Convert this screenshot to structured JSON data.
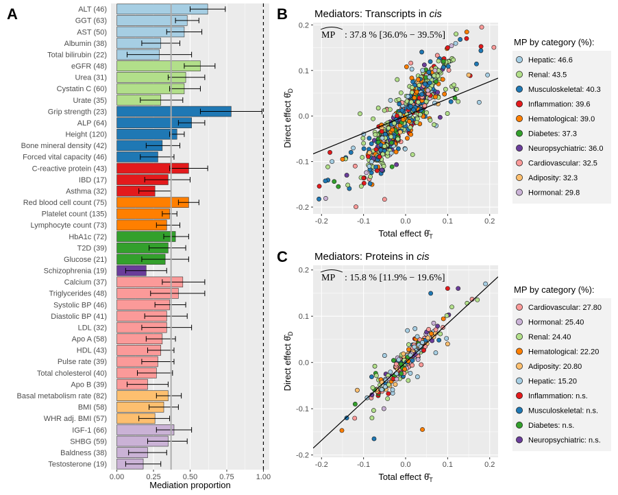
{
  "colors": {
    "Hepatic": "#a6cee3",
    "Renal": "#b2df8a",
    "Musculoskeletal": "#1f78b4",
    "Inflammation": "#e31a1c",
    "Hematological": "#ff7f00",
    "Diabetes": "#33a02c",
    "Neuropsychiatric": "#6a3d9a",
    "Cardiovascular": "#fb9a99",
    "Adiposity": "#fdbf6f",
    "Hormonal": "#cab2d6",
    "panel_bg": "#ebebeb",
    "grid": "#ffffff",
    "text_gray": "#888888"
  },
  "chart_data": [
    {
      "panel": "A",
      "type": "bar",
      "orientation": "horizontal",
      "xlabel": "Mediation proportion",
      "xlim": [
        -0.04,
        1.04
      ],
      "xticks": [
        "0.00",
        "0.25",
        "0.50",
        "0.75",
        "1.00"
      ],
      "reference_lines": {
        "solid_gray": 0.37,
        "dashed": 1.0
      },
      "bars": [
        {
          "label": "ALT (46)",
          "value": 0.62,
          "low": 0.5,
          "high": 0.74,
          "category": "Hepatic"
        },
        {
          "label": "GGT (63)",
          "value": 0.48,
          "low": 0.4,
          "high": 0.56,
          "category": "Hepatic"
        },
        {
          "label": "AST (50)",
          "value": 0.46,
          "low": 0.34,
          "high": 0.58,
          "category": "Hepatic"
        },
        {
          "label": "Albumin (38)",
          "value": 0.3,
          "low": 0.17,
          "high": 0.43,
          "category": "Hepatic"
        },
        {
          "label": "Total bilirubin (22)",
          "value": 0.29,
          "low": 0.07,
          "high": 0.51,
          "category": "Hepatic"
        },
        {
          "label": "eGFR (48)",
          "value": 0.57,
          "low": 0.46,
          "high": 0.67,
          "category": "Renal"
        },
        {
          "label": "Urea (31)",
          "value": 0.47,
          "low": 0.35,
          "high": 0.6,
          "category": "Renal"
        },
        {
          "label": "Cystatin C (60)",
          "value": 0.46,
          "low": 0.36,
          "high": 0.57,
          "category": "Renal"
        },
        {
          "label": "Urate (35)",
          "value": 0.3,
          "low": 0.16,
          "high": 0.45,
          "category": "Renal"
        },
        {
          "label": "Grip strength (23)",
          "value": 0.78,
          "low": 0.57,
          "high": 0.99,
          "category": "Musculoskeletal"
        },
        {
          "label": "ALP (64)",
          "value": 0.51,
          "low": 0.42,
          "high": 0.6,
          "category": "Musculoskeletal"
        },
        {
          "label": "Height (120)",
          "value": 0.41,
          "low": 0.36,
          "high": 0.46,
          "category": "Musculoskeletal"
        },
        {
          "label": "Bone mineral density (42)",
          "value": 0.31,
          "low": 0.2,
          "high": 0.43,
          "category": "Musculoskeletal"
        },
        {
          "label": "Forced vital capacity (46)",
          "value": 0.28,
          "low": 0.16,
          "high": 0.39,
          "category": "Musculoskeletal"
        },
        {
          "label": "C-reactive protein (43)",
          "value": 0.49,
          "low": 0.36,
          "high": 0.62,
          "category": "Inflammation"
        },
        {
          "label": "IBD (17)",
          "value": 0.35,
          "low": 0.19,
          "high": 0.5,
          "category": "Inflammation"
        },
        {
          "label": "Asthma (32)",
          "value": 0.26,
          "low": 0.15,
          "high": 0.37,
          "category": "Inflammation"
        },
        {
          "label": "Red blood cell count (75)",
          "value": 0.49,
          "low": 0.42,
          "high": 0.56,
          "category": "Hematological"
        },
        {
          "label": "Platelet count (135)",
          "value": 0.36,
          "low": 0.31,
          "high": 0.41,
          "category": "Hematological"
        },
        {
          "label": "Lymphocyte count (73)",
          "value": 0.34,
          "low": 0.27,
          "high": 0.43,
          "category": "Hematological"
        },
        {
          "label": "HbA1c (72)",
          "value": 0.4,
          "low": 0.32,
          "high": 0.49,
          "category": "Diabetes"
        },
        {
          "label": "T2D (39)",
          "value": 0.35,
          "low": 0.22,
          "high": 0.47,
          "category": "Diabetes"
        },
        {
          "label": "Glucose (21)",
          "value": 0.33,
          "low": 0.17,
          "high": 0.49,
          "category": "Diabetes"
        },
        {
          "label": "Schizophrenia (19)",
          "value": 0.2,
          "low": 0.06,
          "high": 0.34,
          "category": "Neuropsychiatric"
        },
        {
          "label": "Calcium (37)",
          "value": 0.45,
          "low": 0.31,
          "high": 0.6,
          "category": "Cardiovascular"
        },
        {
          "label": "Triglycerides (48)",
          "value": 0.42,
          "low": 0.23,
          "high": 0.6,
          "category": "Cardiovascular"
        },
        {
          "label": "Systolic BP (46)",
          "value": 0.36,
          "low": 0.26,
          "high": 0.47,
          "category": "Cardiovascular"
        },
        {
          "label": "Diastolic BP (41)",
          "value": 0.34,
          "low": 0.19,
          "high": 0.48,
          "category": "Cardiovascular"
        },
        {
          "label": "LDL (32)",
          "value": 0.34,
          "low": 0.17,
          "high": 0.51,
          "category": "Cardiovascular"
        },
        {
          "label": "Apo A (58)",
          "value": 0.31,
          "low": 0.2,
          "high": 0.4,
          "category": "Cardiovascular"
        },
        {
          "label": "HDL (43)",
          "value": 0.3,
          "low": 0.21,
          "high": 0.39,
          "category": "Cardiovascular"
        },
        {
          "label": "Pulse rate (39)",
          "value": 0.28,
          "low": 0.17,
          "high": 0.39,
          "category": "Cardiovascular"
        },
        {
          "label": "Total cholesterol (40)",
          "value": 0.27,
          "low": 0.14,
          "high": 0.38,
          "category": "Cardiovascular"
        },
        {
          "label": "Apo B (39)",
          "value": 0.21,
          "low": 0.07,
          "high": 0.35,
          "category": "Cardiovascular"
        },
        {
          "label": "Basal metabolism rate (82)",
          "value": 0.35,
          "low": 0.27,
          "high": 0.44,
          "category": "Adiposity"
        },
        {
          "label": "BMI (58)",
          "value": 0.32,
          "low": 0.22,
          "high": 0.42,
          "category": "Adiposity"
        },
        {
          "label": "WHR adj. BMI (57)",
          "value": 0.26,
          "low": 0.15,
          "high": 0.36,
          "category": "Adiposity"
        },
        {
          "label": "IGF-1 (66)",
          "value": 0.39,
          "low": 0.27,
          "high": 0.51,
          "category": "Hormonal"
        },
        {
          "label": "SHBG (59)",
          "value": 0.35,
          "low": 0.21,
          "high": 0.48,
          "category": "Hormonal"
        },
        {
          "label": "Baldness (38)",
          "value": 0.21,
          "low": 0.08,
          "high": 0.34,
          "category": "Hormonal"
        },
        {
          "label": "Testosterone (19)",
          "value": 0.18,
          "low": 0.06,
          "high": 0.3,
          "category": "Hormonal"
        }
      ]
    },
    {
      "panel": "B",
      "type": "scatter",
      "title": "Mediators: Transcripts in ",
      "title_italic": "cis",
      "xlabel": "Total effect",
      "ylabel": "Direct effect",
      "x_symbol": "θ̂",
      "x_sub": "T",
      "y_symbol": "θ̂",
      "y_sub": "D",
      "xlim": [
        -0.22,
        0.22
      ],
      "ylim": [
        -0.215,
        0.205
      ],
      "xticks": [
        -0.2,
        -0.1,
        0.0,
        0.1,
        0.2
      ],
      "yticks": [
        -0.2,
        -0.1,
        0.0,
        0.1,
        0.2
      ],
      "tick_labels_x": [
        "-0.2",
        "-0.1",
        "0.0",
        "0.1",
        "0.2"
      ],
      "tick_labels_y": [
        "-0.2",
        "-0.1",
        "0.0",
        "0.1",
        "0.2"
      ],
      "fit_slope": 0.378,
      "mp_label": "MP",
      "mp_value": ":  37.8 % [36.0% − 39.5%]",
      "legend_title": "MP by category (%):",
      "legend": [
        {
          "category": "Hepatic",
          "text": "Hepatic: 46.6",
          "muted": false
        },
        {
          "category": "Renal",
          "text": "Renal: 43.5",
          "muted": false
        },
        {
          "category": "Musculoskeletal",
          "text": "Musculoskeletal: 40.3",
          "muted": false
        },
        {
          "category": "Inflammation",
          "text": "Inflammation: 39.6",
          "muted": false
        },
        {
          "category": "Hematological",
          "text": "Hematological: 39.0",
          "muted": false
        },
        {
          "category": "Diabetes",
          "text": "Diabetes: 37.3",
          "muted": false
        },
        {
          "category": "Neuropsychiatric",
          "text": "Neuropsychiatric: 36.0",
          "muted": false
        },
        {
          "category": "Cardiovascular",
          "text": "Cardiovascular: 32.5",
          "muted": false
        },
        {
          "category": "Adiposity",
          "text": "Adiposity: 32.3",
          "muted": false
        },
        {
          "category": "Hormonal",
          "text": "Hormonal: 29.8",
          "muted": false
        }
      ],
      "n_points_approx": 800,
      "points_sample": [
        [
          -0.19,
          -0.181,
          "Hormonal"
        ],
        [
          -0.175,
          -0.1,
          "Hepatic"
        ],
        [
          -0.18,
          -0.08,
          "Inflammation"
        ],
        [
          -0.16,
          -0.155,
          "Diabetes"
        ],
        [
          -0.15,
          -0.095,
          "Hematological"
        ],
        [
          -0.14,
          -0.13,
          "Neuropsychiatric"
        ],
        [
          -0.13,
          -0.08,
          "Musculoskeletal"
        ],
        [
          -0.12,
          -0.11,
          "Cardiovascular"
        ],
        [
          -0.1,
          -0.06,
          "Renal"
        ],
        [
          -0.05,
          -0.183,
          "Cardiovascular"
        ],
        [
          0.1,
          0.15,
          "Inflammation"
        ],
        [
          0.12,
          0.18,
          "Renal"
        ],
        [
          0.145,
          0.17,
          "Inflammation"
        ],
        [
          0.15,
          0.09,
          "Adiposity"
        ],
        [
          0.175,
          0.03,
          "Hepatic"
        ],
        [
          0.195,
          0.09,
          "Hepatic"
        ],
        [
          0.07,
          0.1,
          "Hormonal"
        ],
        [
          0.03,
          0.08,
          "Hematological"
        ],
        [
          -0.02,
          0.08,
          "Renal"
        ],
        [
          0.09,
          0.12,
          "Diabetes"
        ]
      ]
    },
    {
      "panel": "C",
      "type": "scatter",
      "title": "Mediators: Proteins in ",
      "title_italic": "cis",
      "xlabel": "Total effect",
      "ylabel": "Direct effect",
      "x_symbol": "θ̂",
      "x_sub": "T",
      "y_symbol": "θ̂",
      "y_sub": "D",
      "xlim": [
        -0.22,
        0.22
      ],
      "ylim": [
        -0.205,
        0.21
      ],
      "xticks": [
        -0.2,
        -0.1,
        0.0,
        0.1,
        0.2
      ],
      "yticks": [
        -0.2,
        -0.1,
        0.0,
        0.1,
        0.2
      ],
      "tick_labels_x": [
        "-0.2",
        "-0.1",
        "0.0",
        "0.1",
        "0.2"
      ],
      "tick_labels_y": [
        "-0.2",
        "-0.1",
        "0.0",
        "0.1",
        "0.2"
      ],
      "fit_slope": 0.842,
      "mp_label": "MP",
      "mp_value": ":  15.8 % [11.9% − 19.6%]",
      "legend_title": "MP by category (%):",
      "legend": [
        {
          "category": "Cardiovascular",
          "text": "Cardiovascular: 27.80",
          "muted": false
        },
        {
          "category": "Hormonal",
          "text": "Hormonal: 25.40",
          "muted": false
        },
        {
          "category": "Renal",
          "text": "Renal: 24.40",
          "muted": false
        },
        {
          "category": "Hematological",
          "text": "Hematological: 22.20",
          "muted": false
        },
        {
          "category": "Adiposity",
          "text": "Adiposity: 20.80",
          "muted": false
        },
        {
          "category": "Hepatic",
          "text": "Hepatic: 15.20",
          "muted": false
        },
        {
          "category": "Inflammation",
          "text": "Inflammation: n.s.",
          "muted": true
        },
        {
          "category": "Musculoskeletal",
          "text": "Musculoskeletal: n.s.",
          "muted": true
        },
        {
          "category": "Diabetes",
          "text": "Diabetes: n.s.",
          "muted": true
        },
        {
          "category": "Neuropsychiatric",
          "text": "Neuropsychiatric: n.s.",
          "muted": true
        }
      ],
      "n_points_approx": 250,
      "points_sample": [
        [
          -0.14,
          -0.12,
          "Musculoskeletal"
        ],
        [
          -0.12,
          -0.09,
          "Diabetes"
        ],
        [
          -0.115,
          -0.06,
          "Adiposity"
        ],
        [
          -0.08,
          -0.12,
          "Renal"
        ],
        [
          -0.075,
          -0.165,
          "Musculoskeletal"
        ],
        [
          0.04,
          -0.145,
          "Hematological"
        ],
        [
          0.1,
          0.16,
          "Inflammation"
        ],
        [
          0.11,
          0.12,
          "Renal"
        ],
        [
          0.125,
          0.16,
          "Neuropsychiatric"
        ],
        [
          0.19,
          0.17,
          "Hepatic"
        ],
        [
          0.1,
          0.04,
          "Adiposity"
        ],
        [
          -0.05,
          0.015,
          "Hepatic"
        ]
      ]
    }
  ],
  "labels": {
    "panel_a": "A",
    "panel_b": "B",
    "panel_c": "C"
  }
}
